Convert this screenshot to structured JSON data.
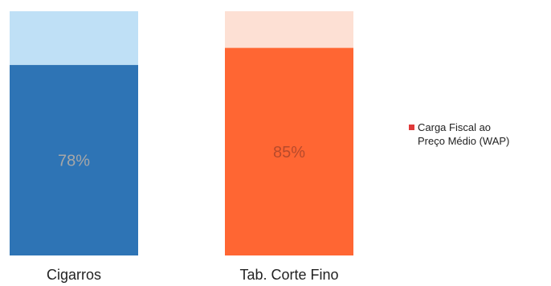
{
  "chart_data": {
    "type": "bar",
    "stacked": "100%",
    "categories": [
      "Cigarros",
      "Tab. Corte Fino"
    ],
    "series": [
      {
        "name": "Carga Fiscal ao\nPreço Médio (WAP)",
        "values": [
          78,
          85
        ],
        "labels": [
          "78%",
          "85%"
        ]
      },
      {
        "values": [
          22,
          15
        ]
      }
    ],
    "bar_colors": [
      "#2e74b5",
      "#ff6633"
    ],
    "remainder_colors": [
      "#bfe0f6",
      "#fde0d4"
    ],
    "label_colors": [
      "#a7a7a7",
      "#b74a2b"
    ],
    "legend_color": "#e03a3a",
    "legend_position": "right",
    "ylim": [
      0,
      100
    ],
    "grid": false
  }
}
